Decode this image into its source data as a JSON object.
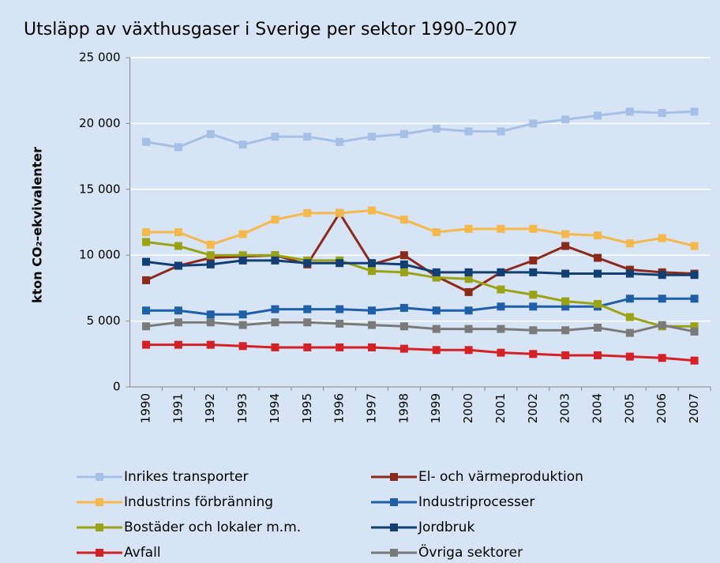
{
  "chart_data": {
    "type": "line",
    "title": "Utsläpp av växthusgaser i Sverige per sektor 1990–2007",
    "y_label": "kton CO₂-ekvivalenter",
    "categories": [
      "1990",
      "1991",
      "1992",
      "1993",
      "1994",
      "1995",
      "1996",
      "1997",
      "1998",
      "1999",
      "2000",
      "2001",
      "2002",
      "2003",
      "2004",
      "2005",
      "2006",
      "2007"
    ],
    "ylim": [
      0,
      25000
    ],
    "yticks": [
      0,
      {
        "value": 5000,
        "label": "5 000"
      },
      {
        "value": 10000,
        "label": "10 000"
      },
      {
        "value": 15000,
        "label": "15 000"
      },
      {
        "value": 20000,
        "label": "20 000"
      },
      {
        "value": 25000,
        "label": "25 000"
      }
    ],
    "grid": true,
    "series": [
      {
        "name": "Inrikes transporter",
        "color": "#a6bfe6",
        "values": [
          18600,
          18200,
          19200,
          18400,
          19000,
          19000,
          18600,
          19000,
          19200,
          19600,
          19400,
          19400,
          20000,
          20300,
          20600,
          20900,
          20800,
          20900
        ]
      },
      {
        "name": "El- och värmeproduktion",
        "color": "#8b2a1a",
        "values": [
          8100,
          9200,
          9800,
          9900,
          10000,
          9300,
          13200,
          9300,
          10000,
          8400,
          7200,
          8700,
          9600,
          10700,
          9800,
          8900,
          8700,
          8600
        ]
      },
      {
        "name": "Industrins förbränning",
        "color": "#f5b84a",
        "values": [
          11750,
          11750,
          10800,
          11600,
          12700,
          13200,
          13200,
          13400,
          12700,
          11750,
          12000,
          12000,
          12000,
          11600,
          11500,
          10900,
          11300,
          10700
        ]
      },
      {
        "name": "Industriprocesser",
        "color": "#1f5fa8",
        "values": [
          5800,
          5800,
          5500,
          5500,
          5900,
          5900,
          5900,
          5800,
          6000,
          5800,
          5800,
          6100,
          6100,
          6100,
          6100,
          6700,
          6700,
          6700
        ]
      },
      {
        "name": "Bostäder och lokaler m.m.",
        "color": "#9aa216",
        "values": [
          11000,
          10700,
          10000,
          10000,
          10000,
          9600,
          9600,
          8800,
          8700,
          8300,
          8200,
          7400,
          7000,
          6500,
          6300,
          5300,
          4600,
          4600
        ]
      },
      {
        "name": "Jordbruk",
        "color": "#123f73",
        "values": [
          9500,
          9200,
          9300,
          9600,
          9600,
          9400,
          9400,
          9400,
          9300,
          8700,
          8700,
          8700,
          8700,
          8600,
          8600,
          8600,
          8500,
          8500
        ]
      },
      {
        "name": "Avfall",
        "color": "#d42126",
        "values": [
          3200,
          3200,
          3200,
          3100,
          3000,
          3000,
          3000,
          3000,
          2900,
          2800,
          2800,
          2600,
          2500,
          2400,
          2400,
          2300,
          2200,
          2000
        ]
      },
      {
        "name": "Övriga sektorer",
        "color": "#7a7a7a",
        "values": [
          4600,
          4900,
          4900,
          4700,
          4900,
          4900,
          4800,
          4700,
          4600,
          4400,
          4400,
          4400,
          4300,
          4300,
          4500,
          4100,
          4700,
          4200
        ]
      }
    ]
  }
}
